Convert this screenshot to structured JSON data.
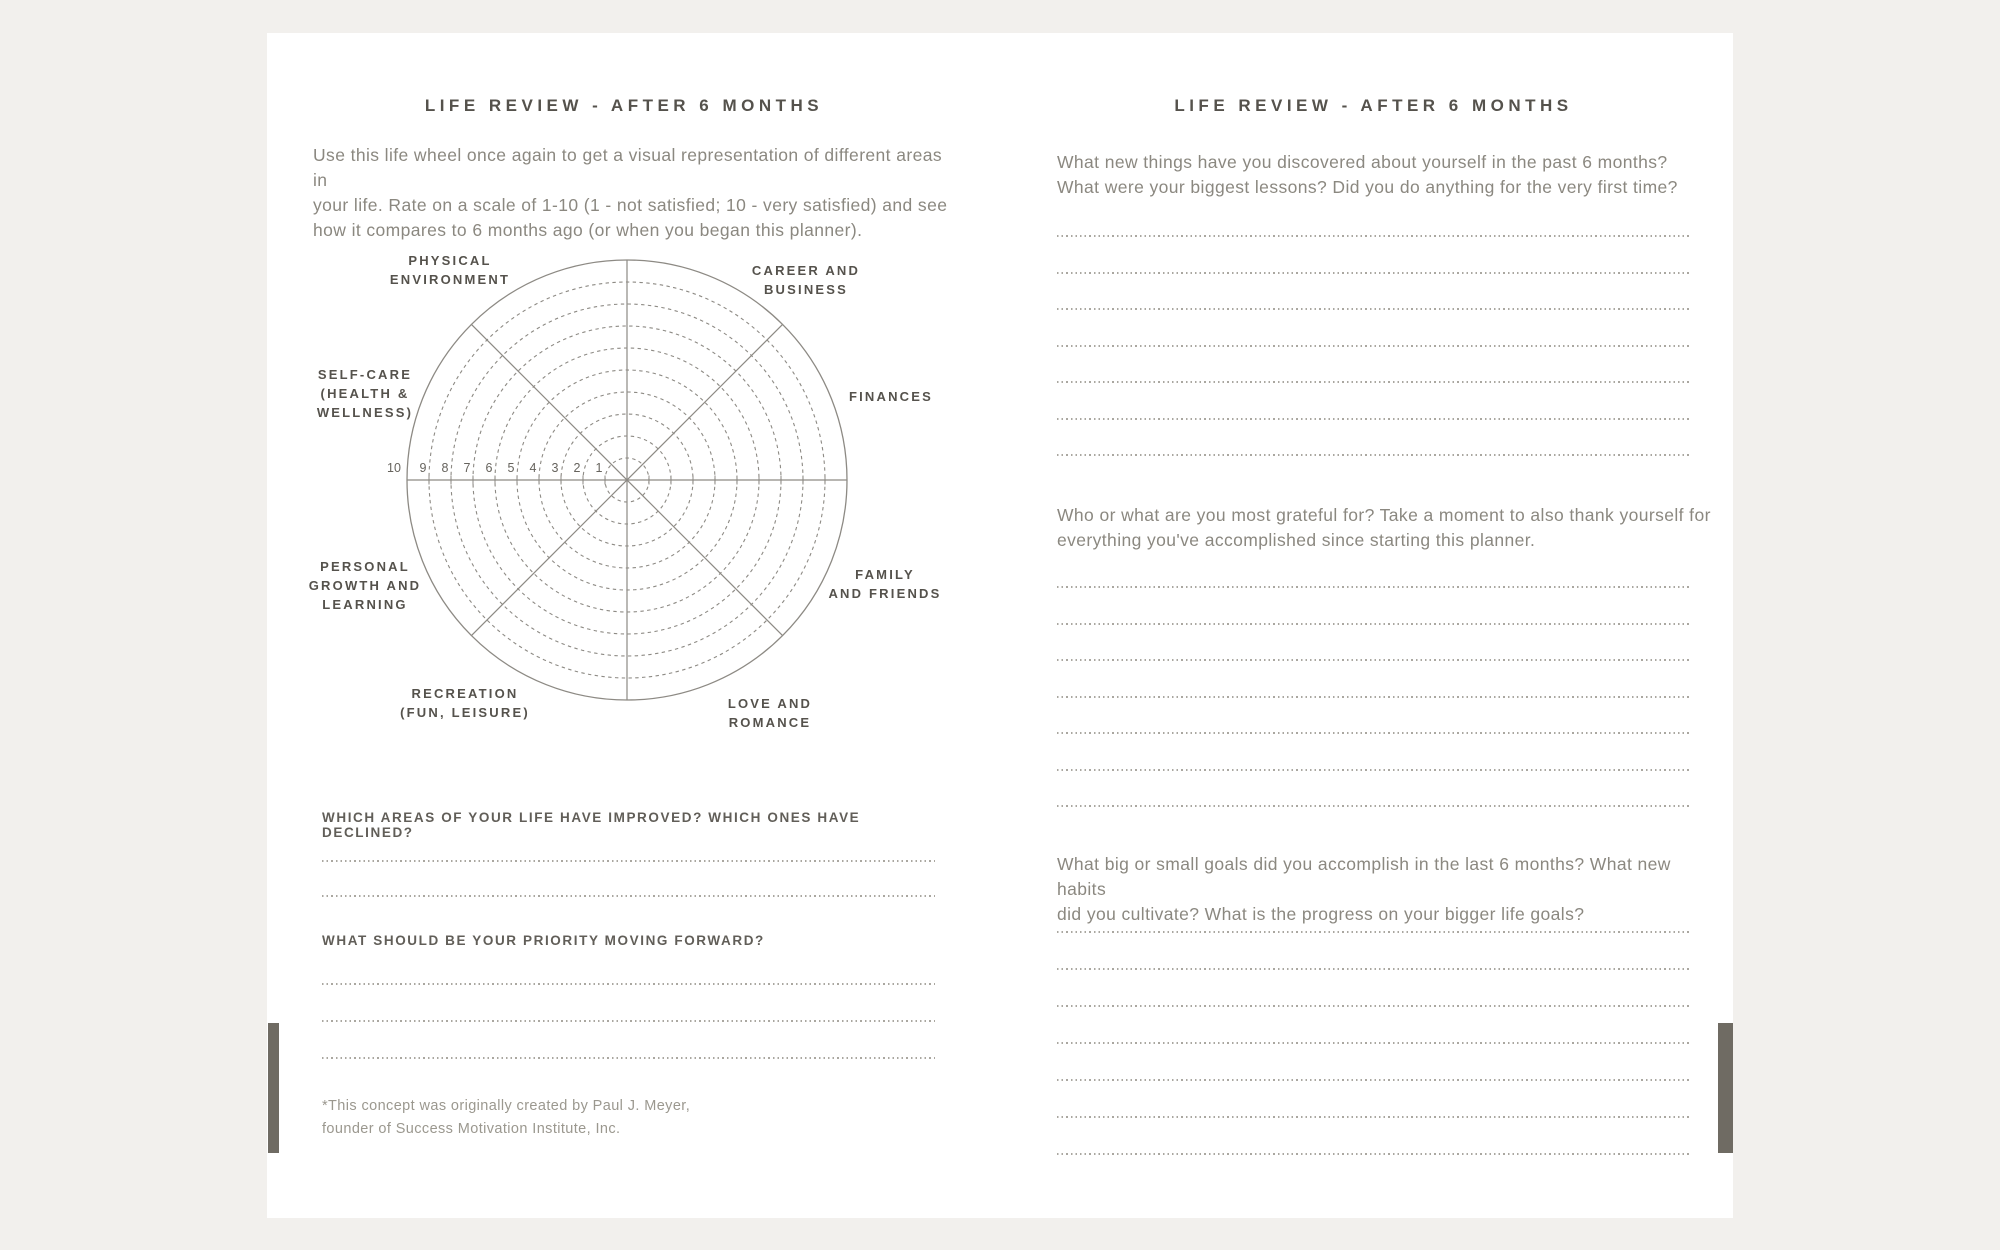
{
  "colors": {
    "background": "#f2f0ed",
    "paper": "#ffffff",
    "heading_text": "#55524c",
    "body_text": "#8b8880",
    "wheel_line": "#8d8a84",
    "dotted_rule": "#aaa7a0",
    "bookmark_bar": "#6f6b63"
  },
  "left_page": {
    "title": "LIFE REVIEW - AFTER 6 MONTHS",
    "intro_lines": [
      "Use this life wheel once again to get a visual representation of different areas in",
      "your life. Rate on a scale of 1-10 (1 - not satisfied; 10 - very satisfied) and see",
      "how it compares to 6 months ago (or when you began this planner)."
    ],
    "question1": {
      "label": "WHICH AREAS OF YOUR LIFE HAVE IMPROVED? WHICH ONES HAVE DECLINED?",
      "answer_lines": 2
    },
    "question2": {
      "label": "WHAT SHOULD BE YOUR PRIORITY MOVING FORWARD?",
      "answer_lines": 3
    },
    "footnote_lines": [
      "*This concept was originally created by Paul J. Meyer,",
      "founder of Success Motivation Institute, Inc."
    ]
  },
  "right_page": {
    "title": "LIFE REVIEW - AFTER 6 MONTHS",
    "question1": {
      "line1": "What new things have you discovered about yourself in the past 6 months?",
      "line2": "What were your biggest lessons? Did you do anything for the very first time?",
      "answer_lines": 7
    },
    "question2": {
      "line1": "Who or what are you most grateful for? Take a moment to also thank yourself for",
      "line2": "everything you've accomplished since starting this planner.",
      "answer_lines": 7
    },
    "question3": {
      "line1": "What big or small goals did you accomplish in the last 6 months? What new habits",
      "line2": "did you cultivate? What is the progress on your bigger life goals?",
      "answer_lines": 7
    }
  },
  "wheel": {
    "rings": 10,
    "scale_numbers": [
      10,
      9,
      8,
      7,
      6,
      5,
      4,
      3,
      2,
      1
    ],
    "labels": [
      {
        "lines": [
          "PHYSICAL",
          "ENVIRONMENT"
        ]
      },
      {
        "lines": [
          "CAREER AND",
          "BUSINESS"
        ]
      },
      {
        "lines": [
          "SELF-CARE",
          "(HEALTH &",
          "WELLNESS)"
        ]
      },
      {
        "lines": [
          "FINANCES"
        ]
      },
      {
        "lines": [
          "PERSONAL",
          "GROWTH AND",
          "LEARNING"
        ]
      },
      {
        "lines": [
          "FAMILY",
          "AND FRIENDS"
        ]
      },
      {
        "lines": [
          "RECREATION",
          "(FUN, LEISURE)"
        ]
      },
      {
        "lines": [
          "LOVE AND",
          "ROMANCE"
        ]
      }
    ]
  }
}
